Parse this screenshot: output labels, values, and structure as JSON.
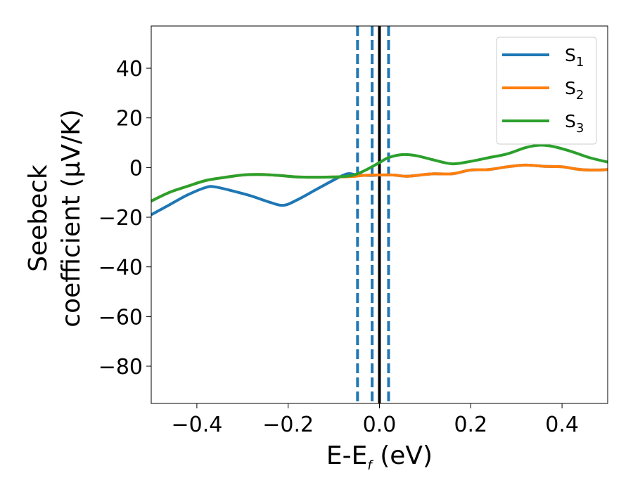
{
  "chart_data": {
    "type": "line",
    "xlabel": "E-E",
    "xlabel_sub": "f",
    "xlabel_suffix": " (eV)",
    "ylabel_line1": "Seebeck",
    "ylabel_line2": "coefficient  (μV/K)",
    "xlim": [
      -0.5,
      0.5
    ],
    "ylim": [
      -95,
      57
    ],
    "x_ticks": [
      -0.4,
      -0.2,
      0.0,
      0.2,
      0.4
    ],
    "x_tick_labels": [
      "−0.4",
      "−0.2",
      "0.0",
      "0.2",
      "0.4"
    ],
    "y_ticks": [
      40,
      20,
      0,
      -20,
      -40,
      -60,
      -80
    ],
    "y_tick_labels": [
      "40",
      "20",
      "0",
      "−20",
      "−40",
      "−60",
      "−80"
    ],
    "legend_position": "top-right",
    "series": [
      {
        "name": "S",
        "name_sub": "1",
        "color": "#1f77b4",
        "points": [
          [
            -0.5,
            -19
          ],
          [
            -0.46,
            -15
          ],
          [
            -0.42,
            -11
          ],
          [
            -0.38,
            -8
          ],
          [
            -0.36,
            -7.8
          ],
          [
            -0.32,
            -9.5
          ],
          [
            -0.28,
            -11.5
          ],
          [
            -0.24,
            -14
          ],
          [
            -0.21,
            -15.2
          ],
          [
            -0.18,
            -13
          ],
          [
            -0.14,
            -9
          ],
          [
            -0.1,
            -5
          ],
          [
            -0.07,
            -2.5
          ],
          [
            -0.05,
            -3
          ],
          [
            -0.02,
            -3.2
          ],
          [
            0.0,
            -3
          ],
          [
            0.03,
            -3
          ],
          [
            0.06,
            -3.5
          ],
          [
            0.1,
            -2.8
          ],
          [
            0.12,
            -2.5
          ],
          [
            0.16,
            -2.5
          ],
          [
            0.2,
            -1
          ],
          [
            0.24,
            -0.8
          ],
          [
            0.28,
            0.3
          ],
          [
            0.32,
            1
          ],
          [
            0.36,
            0.5
          ],
          [
            0.4,
            0.3
          ],
          [
            0.44,
            -0.8
          ],
          [
            0.48,
            -1
          ],
          [
            0.5,
            -0.8
          ]
        ]
      },
      {
        "name": "S",
        "name_sub": "2",
        "color": "#ff7f0e",
        "points": [
          [
            -0.5,
            -13.5
          ],
          [
            -0.46,
            -10
          ],
          [
            -0.42,
            -7.5
          ],
          [
            -0.38,
            -5.2
          ],
          [
            -0.34,
            -4
          ],
          [
            -0.3,
            -3
          ],
          [
            -0.26,
            -2.8
          ],
          [
            -0.22,
            -3.2
          ],
          [
            -0.18,
            -3.8
          ],
          [
            -0.14,
            -3.9
          ],
          [
            -0.1,
            -3.8
          ],
          [
            -0.06,
            -3.6
          ],
          [
            -0.03,
            -3.1
          ],
          [
            0.0,
            -3
          ],
          [
            0.03,
            -3
          ],
          [
            0.06,
            -3.5
          ],
          [
            0.1,
            -2.8
          ],
          [
            0.12,
            -2.5
          ],
          [
            0.16,
            -2.5
          ],
          [
            0.2,
            -1
          ],
          [
            0.24,
            -0.8
          ],
          [
            0.28,
            0.3
          ],
          [
            0.32,
            1
          ],
          [
            0.36,
            0.5
          ],
          [
            0.4,
            0.3
          ],
          [
            0.44,
            -0.8
          ],
          [
            0.48,
            -1
          ],
          [
            0.5,
            -0.8
          ]
        ]
      },
      {
        "name": "S",
        "name_sub": "3",
        "color": "#2ca02c",
        "points": [
          [
            -0.5,
            -13.5
          ],
          [
            -0.46,
            -10
          ],
          [
            -0.42,
            -7.5
          ],
          [
            -0.38,
            -5.2
          ],
          [
            -0.34,
            -4
          ],
          [
            -0.3,
            -3
          ],
          [
            -0.26,
            -2.8
          ],
          [
            -0.22,
            -3.2
          ],
          [
            -0.18,
            -3.8
          ],
          [
            -0.14,
            -3.9
          ],
          [
            -0.1,
            -3.8
          ],
          [
            -0.06,
            -3.2
          ],
          [
            -0.03,
            -1
          ],
          [
            0.0,
            2
          ],
          [
            0.02,
            4
          ],
          [
            0.05,
            5.2
          ],
          [
            0.08,
            4.8
          ],
          [
            0.12,
            3
          ],
          [
            0.16,
            1.5
          ],
          [
            0.2,
            2.5
          ],
          [
            0.24,
            4
          ],
          [
            0.28,
            5.5
          ],
          [
            0.32,
            8
          ],
          [
            0.35,
            9
          ],
          [
            0.38,
            8.5
          ],
          [
            0.42,
            6.5
          ],
          [
            0.46,
            4
          ],
          [
            0.5,
            2.2
          ]
        ]
      }
    ],
    "vlines": [
      {
        "x": -0.048,
        "style": "dashed",
        "color": "#1f77b4"
      },
      {
        "x": -0.016,
        "style": "dashed",
        "color": "#1f77b4"
      },
      {
        "x": 0.0,
        "style": "solid",
        "color": "#000000"
      },
      {
        "x": 0.02,
        "style": "dashed",
        "color": "#1f77b4"
      }
    ]
  }
}
